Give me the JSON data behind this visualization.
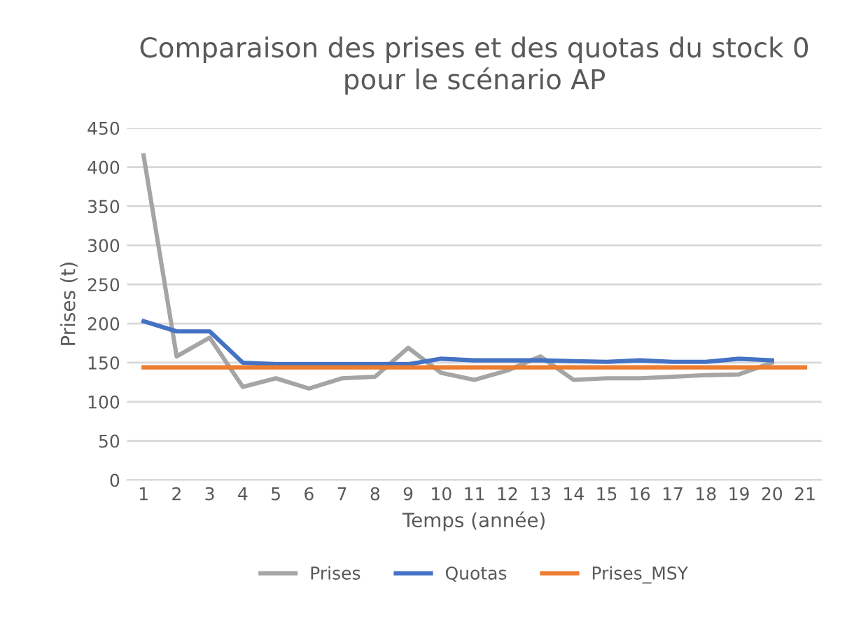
{
  "chart_data": {
    "type": "line",
    "title": "Comparaison des prises et des quotas du stock 0\npour le scénario AP",
    "xlabel": "Temps (année)",
    "ylabel": "Prises (t)",
    "categories": [
      "1",
      "2",
      "3",
      "4",
      "5",
      "6",
      "7",
      "8",
      "9",
      "10",
      "11",
      "12",
      "13",
      "14",
      "15",
      "16",
      "17",
      "18",
      "19",
      "20",
      "21"
    ],
    "series": [
      {
        "name": "Prises",
        "color": "#a5a5a5",
        "values": [
          415,
          158,
          182,
          119,
          130,
          117,
          130,
          132,
          169,
          137,
          128,
          140,
          158,
          128,
          130,
          130,
          132,
          134,
          135,
          150,
          null
        ]
      },
      {
        "name": "Quotas",
        "color": "#4472c4",
        "values": [
          203,
          190,
          190,
          150,
          148,
          148,
          148,
          148,
          148,
          155,
          153,
          153,
          153,
          152,
          151,
          153,
          151,
          151,
          155,
          153,
          null
        ]
      },
      {
        "name": "Prises_MSY",
        "color": "#ed7d31",
        "values": [
          144,
          144,
          144,
          144,
          144,
          144,
          144,
          144,
          144,
          144,
          144,
          144,
          144,
          144,
          144,
          144,
          144,
          144,
          144,
          144,
          144
        ]
      }
    ],
    "ylim": [
      0,
      450
    ],
    "yticks": [
      0,
      50,
      100,
      150,
      200,
      250,
      300,
      350,
      400,
      450
    ],
    "grid": "y",
    "legend": "bottom",
    "marker": "none",
    "line_style": "solid"
  }
}
